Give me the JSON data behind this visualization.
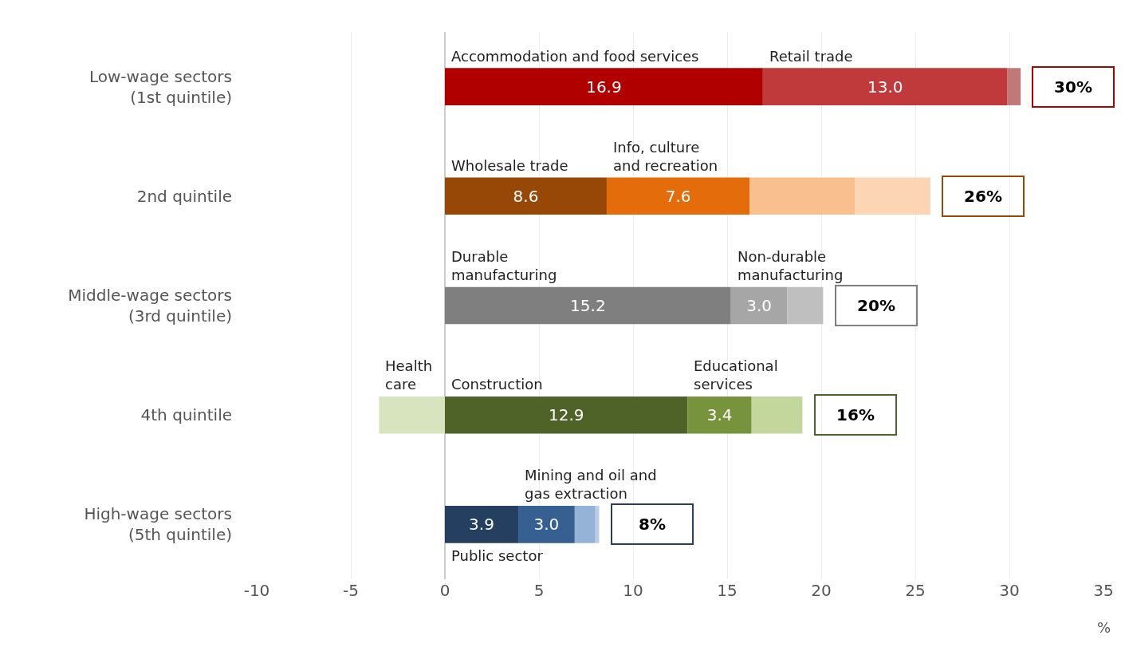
{
  "chart_data": {
    "type": "bar",
    "orientation": "horizontal",
    "stacked": true,
    "categories": [
      "Low-wage sectors\n(1st quintile)",
      "2nd quintile",
      "Middle-wage sectors\n(3rd quintile)",
      "4th quintile",
      "High-wage sectors\n(5th quintile)"
    ],
    "series": [
      {
        "name": "Accommodation and food services",
        "color": "#b00000",
        "values": [
          16.9,
          null,
          null,
          null,
          null
        ],
        "value_labels": [
          "16.9",
          null,
          null,
          null,
          null
        ]
      },
      {
        "name": "Retail trade",
        "color": "#c0393b",
        "values": [
          13.0,
          null,
          null,
          null,
          null
        ],
        "value_labels": [
          "13.0",
          null,
          null,
          null,
          null
        ]
      },
      {
        "color": "#c07878",
        "values": [
          0.7,
          null,
          null,
          null,
          null
        ]
      },
      {
        "name": "Wholesale trade",
        "color": "#974706",
        "values": [
          null,
          8.6,
          null,
          null,
          null
        ],
        "value_labels": [
          null,
          "8.6",
          null,
          null,
          null
        ]
      },
      {
        "name": "Info, culture\nand recreation",
        "color": "#e46c0a",
        "values": [
          null,
          7.6,
          null,
          null,
          null
        ],
        "value_labels": [
          null,
          "7.6",
          null,
          null,
          null
        ]
      },
      {
        "color": "#f9bf8f",
        "values": [
          null,
          5.6,
          null,
          null,
          null
        ]
      },
      {
        "color": "#fcd5b5",
        "values": [
          null,
          4.0,
          null,
          null,
          null
        ]
      },
      {
        "name": "Durable\nmanufacturing",
        "color": "#7f7f7f",
        "values": [
          null,
          null,
          15.2,
          null,
          null
        ],
        "value_labels": [
          null,
          null,
          "15.2",
          null,
          null
        ]
      },
      {
        "name": "Non-durable\nmanufacturing",
        "color": "#a6a6a6",
        "values": [
          null,
          null,
          3.0,
          null,
          null
        ],
        "value_labels": [
          null,
          null,
          "3.0",
          null,
          null
        ]
      },
      {
        "color": "#bfbfbf",
        "values": [
          null,
          null,
          1.9,
          null,
          null
        ]
      },
      {
        "name": "Health\ncare",
        "color": "#d7e4bd",
        "values": [
          null,
          null,
          null,
          -3.5,
          null
        ]
      },
      {
        "name": "Construction",
        "color": "#4f6228",
        "values": [
          null,
          null,
          null,
          12.9,
          null
        ],
        "value_labels": [
          null,
          null,
          null,
          "12.9",
          null
        ]
      },
      {
        "name": "Educational\nservices",
        "color": "#77933c",
        "values": [
          null,
          null,
          null,
          3.4,
          null
        ],
        "value_labels": [
          null,
          null,
          null,
          "3.4",
          null
        ]
      },
      {
        "color": "#c3d69b",
        "values": [
          null,
          null,
          null,
          2.7,
          null
        ]
      },
      {
        "name": "Public sector",
        "color": "#243f60",
        "values": [
          null,
          null,
          null,
          null,
          3.9
        ],
        "value_labels": [
          null,
          null,
          null,
          null,
          "3.9"
        ]
      },
      {
        "name": "Mining and oil and\ngas extraction",
        "color": "#366092",
        "values": [
          null,
          null,
          null,
          null,
          3.0
        ],
        "value_labels": [
          null,
          null,
          null,
          null,
          "3.0"
        ]
      },
      {
        "color": "#95b3d7",
        "values": [
          null,
          null,
          null,
          null,
          1.1
        ]
      },
      {
        "color": "#b9cde5",
        "values": [
          null,
          null,
          null,
          null,
          0.2
        ]
      }
    ],
    "totals": [
      "30%",
      "26%",
      "20%",
      "16%",
      "8%"
    ],
    "xlim": [
      -10,
      35
    ],
    "xticks": [
      -10,
      -5,
      0,
      5,
      10,
      15,
      20,
      25,
      30,
      35
    ],
    "xlabel": "%",
    "grid": "x",
    "legend": false
  }
}
